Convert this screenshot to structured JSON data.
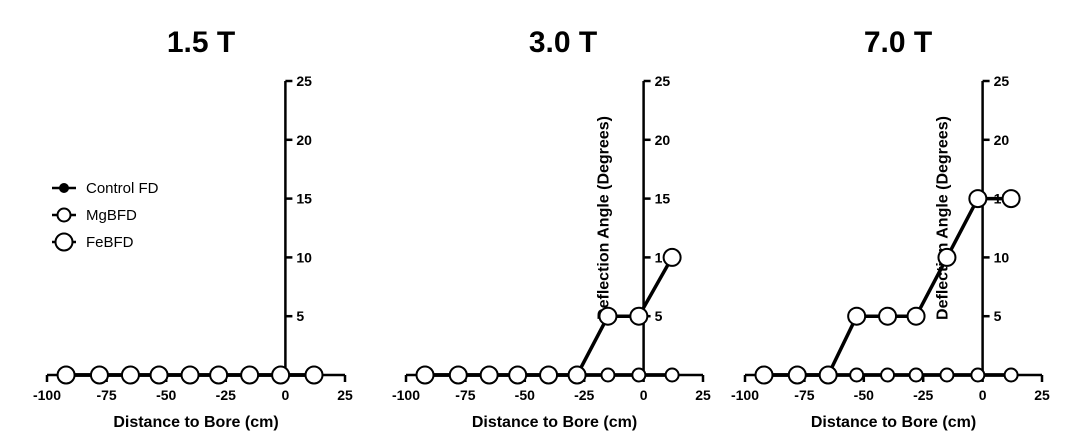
{
  "legend": [
    {
      "name": "Control FD",
      "marker": "filled-dot"
    },
    {
      "name": "MgBFD",
      "marker": "open-circle-small"
    },
    {
      "name": "FeBFD",
      "marker": "open-circle-large"
    }
  ],
  "chart_data": [
    {
      "type": "line",
      "title": "1.5 T",
      "xlabel": "Distance to Bore (cm)",
      "ylabel": "",
      "xlim": [
        -100,
        25
      ],
      "ylim": [
        0,
        25
      ],
      "xticks": [
        -100,
        -75,
        -50,
        -25,
        0,
        25
      ],
      "yticks": [
        5,
        10,
        15,
        20,
        25
      ],
      "grid": false,
      "series": [
        {
          "name": "Control FD",
          "x": [
            -92,
            -78,
            -65,
            -53,
            -40,
            -28,
            -15,
            -2,
            12
          ],
          "y": [
            0,
            0,
            0,
            0,
            0,
            0,
            0,
            0,
            0
          ]
        },
        {
          "name": "MgBFD",
          "x": [
            -92,
            -78,
            -65,
            -53,
            -40,
            -28,
            -15,
            -2,
            12
          ],
          "y": [
            0,
            0,
            0,
            0,
            0,
            0,
            0,
            0,
            0
          ]
        },
        {
          "name": "FeBFD",
          "x": [
            -92,
            -78,
            -65,
            -53,
            -40,
            -28,
            -15,
            -2,
            12
          ],
          "y": [
            0,
            0,
            0,
            0,
            0,
            0,
            0,
            0,
            0
          ]
        }
      ]
    },
    {
      "type": "line",
      "title": "3.0 T",
      "xlabel": "Distance to Bore (cm)",
      "ylabel": "Deflection Angle (Degrees)",
      "xlim": [
        -100,
        25
      ],
      "ylim": [
        0,
        25
      ],
      "xticks": [
        -100,
        -75,
        -50,
        -25,
        0,
        25
      ],
      "yticks": [
        5,
        10,
        15,
        20,
        25
      ],
      "grid": false,
      "series": [
        {
          "name": "Control FD",
          "x": [
            -92,
            -78,
            -65,
            -53,
            -40,
            -28,
            -15,
            -2,
            12
          ],
          "y": [
            0,
            0,
            0,
            0,
            0,
            0,
            0,
            0,
            0
          ]
        },
        {
          "name": "MgBFD",
          "x": [
            -92,
            -78,
            -65,
            -53,
            -40,
            -28,
            -15,
            -2,
            12
          ],
          "y": [
            0,
            0,
            0,
            0,
            0,
            0,
            0,
            0,
            0
          ]
        },
        {
          "name": "FeBFD",
          "x": [
            -92,
            -78,
            -65,
            -53,
            -40,
            -28,
            -15,
            -2,
            12
          ],
          "y": [
            0,
            0,
            0,
            0,
            0,
            0,
            5,
            5,
            10
          ]
        }
      ]
    },
    {
      "type": "line",
      "title": "7.0 T",
      "xlabel": "Distance to Bore (cm)",
      "ylabel": "Deflection Angle (Degrees)",
      "xlim": [
        -100,
        25
      ],
      "ylim": [
        0,
        25
      ],
      "xticks": [
        -100,
        -75,
        -50,
        -25,
        0,
        25
      ],
      "yticks": [
        5,
        10,
        15,
        20,
        25
      ],
      "grid": false,
      "series": [
        {
          "name": "Control FD",
          "x": [
            -92,
            -78,
            -65,
            -53,
            -40,
            -28,
            -15,
            -2,
            12
          ],
          "y": [
            0,
            0,
            0,
            0,
            0,
            0,
            0,
            0,
            0
          ]
        },
        {
          "name": "MgBFD",
          "x": [
            -92,
            -78,
            -65,
            -53,
            -40,
            -28,
            -15,
            -2,
            12
          ],
          "y": [
            0,
            0,
            0,
            0,
            0,
            0,
            0,
            0,
            0
          ]
        },
        {
          "name": "FeBFD",
          "x": [
            -92,
            -78,
            -65,
            -53,
            -40,
            -28,
            -15,
            -2,
            12
          ],
          "y": [
            0,
            0,
            0,
            5,
            5,
            5,
            10,
            15,
            15
          ]
        }
      ]
    }
  ]
}
